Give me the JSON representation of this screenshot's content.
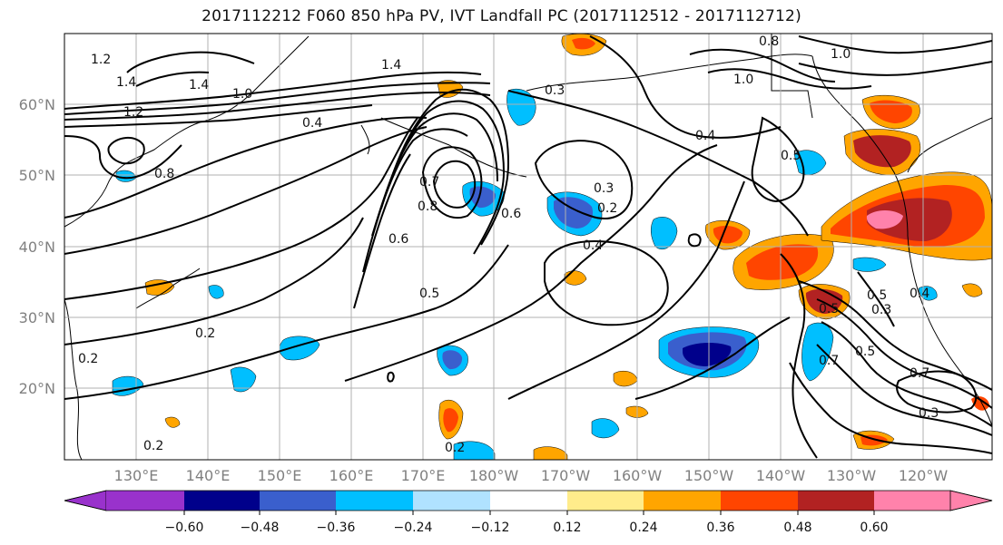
{
  "title": "2017112212 F060 850 hPa PV, IVT Landfall PC (2017112512 - 2017112712)",
  "axes": {
    "lat_labels": [
      "60°N",
      "50°N",
      "40°N",
      "30°N",
      "20°N"
    ],
    "lon_labels": [
      "130°E",
      "140°E",
      "150°E",
      "160°E",
      "170°E",
      "180°W",
      "170°W",
      "160°W",
      "150°W",
      "140°W",
      "130°W",
      "120°W"
    ],
    "grid": true
  },
  "colorbar": {
    "ticks": [
      "−0.60",
      "−0.48",
      "−0.36",
      "−0.24",
      "−0.12",
      "0.12",
      "0.24",
      "0.36",
      "0.48",
      "0.60"
    ],
    "colors": [
      "#9932cc",
      "#00008b",
      "#3a5fcd",
      "#00bfff",
      "#b0e2ff",
      "#ffffff",
      "#ffec8b",
      "#ffa500",
      "#ff4500",
      "#b22222",
      "#ff82ab"
    ],
    "extend": "both"
  },
  "contour_labels": [
    "1.2",
    "1.4",
    "1.4",
    "1.0",
    "1.2",
    "1.4",
    "0.8",
    "1.0",
    "1.0",
    "0.8",
    "0.4",
    "0.3",
    "0.4",
    "0.5",
    "0.8",
    "0.6",
    "0.7",
    "0.3",
    "0.2",
    "0.6",
    "0.5",
    "0.4",
    "0.2",
    "0.2",
    "0.2",
    "0.2",
    "0.3",
    "0.5",
    "0.7",
    "0.7",
    "0.5",
    "0.3",
    "0.4",
    "0.5"
  ]
}
